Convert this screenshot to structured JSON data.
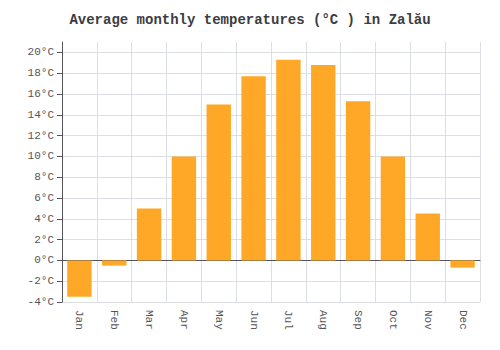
{
  "chart_data": {
    "type": "bar",
    "title": "Average monthly temperatures (°C ) in Zalău",
    "categories": [
      "Jan",
      "Feb",
      "Mar",
      "Apr",
      "May",
      "Jun",
      "Jul",
      "Aug",
      "Sep",
      "Oct",
      "Nov",
      "Dec"
    ],
    "values": [
      -3.5,
      -0.5,
      5.0,
      10.0,
      15.0,
      17.7,
      19.3,
      18.8,
      15.3,
      10.0,
      4.5,
      -0.7
    ],
    "color": "#FFA726",
    "ylim": [
      -4,
      21
    ],
    "yticks": [
      {
        "value": -4,
        "label": "-4°C"
      },
      {
        "value": -2,
        "label": "-2°C"
      },
      {
        "value": 0,
        "label": "0°C"
      },
      {
        "value": 2,
        "label": "2°C"
      },
      {
        "value": 4,
        "label": "4°C"
      },
      {
        "value": 6,
        "label": "6°C"
      },
      {
        "value": 8,
        "label": "8°C"
      },
      {
        "value": 10,
        "label": "10°C"
      },
      {
        "value": 12,
        "label": "12°C"
      },
      {
        "value": 14,
        "label": "14°C"
      },
      {
        "value": 16,
        "label": "16°C"
      },
      {
        "value": 18,
        "label": "18°C"
      },
      {
        "value": 20,
        "label": "20°C"
      }
    ],
    "grid": true
  }
}
